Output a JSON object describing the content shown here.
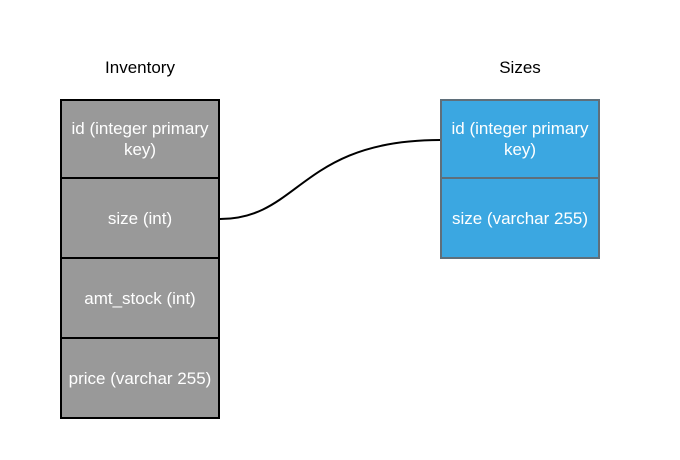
{
  "colors": {
    "inventory_fill": "#999999",
    "inventory_border": "#000000",
    "sizes_fill": "#3ba7e1",
    "sizes_border": "#5f6f7a",
    "connector": "#000000",
    "cell_text": "#ffffff"
  },
  "inventory": {
    "title": "Inventory",
    "rows": [
      "id (integer primary key)",
      "size (int)",
      "amt_stock (int)",
      "price (varchar 255)"
    ]
  },
  "sizes": {
    "title": "Sizes",
    "rows": [
      "id (integer primary key)",
      "size (varchar 255)"
    ]
  },
  "relation": {
    "from": "inventory.size",
    "to": "sizes.id"
  }
}
